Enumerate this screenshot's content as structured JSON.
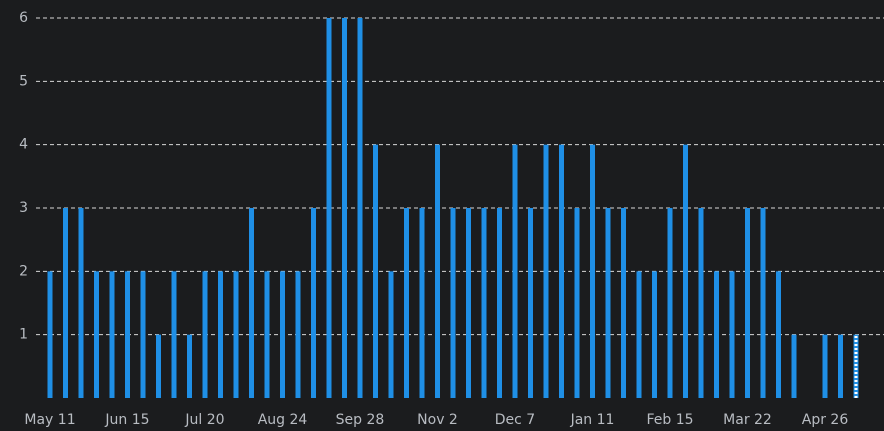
{
  "chart_data": {
    "type": "bar",
    "categories": [
      "May 11",
      null,
      null,
      null,
      null,
      "Jun 15",
      null,
      null,
      null,
      null,
      "Jul 20",
      null,
      null,
      null,
      null,
      "Aug 24",
      null,
      null,
      null,
      null,
      "Sep 28",
      null,
      null,
      null,
      null,
      "Nov 2",
      null,
      null,
      null,
      null,
      "Dec 7",
      null,
      null,
      null,
      null,
      "Jan 11",
      null,
      null,
      null,
      null,
      "Feb 15",
      null,
      null,
      null,
      null,
      "Mar 22",
      null,
      null,
      null,
      null,
      "Apr 26",
      null,
      null
    ],
    "values": [
      2,
      3,
      3,
      2,
      2,
      2,
      2,
      1,
      2,
      1,
      2,
      2,
      2,
      3,
      2,
      2,
      2,
      3,
      6,
      6,
      6,
      4,
      2,
      3,
      3,
      4,
      3,
      3,
      3,
      3,
      4,
      3,
      4,
      4,
      3,
      4,
      3,
      3,
      2,
      2,
      3,
      4,
      3,
      2,
      2,
      3,
      3,
      2,
      1,
      0,
      1,
      1,
      1
    ],
    "color": "#1f8fe6",
    "ylim": [
      0,
      6
    ],
    "yticks": [
      1,
      2,
      3,
      4,
      5,
      6
    ],
    "grid": true
  }
}
